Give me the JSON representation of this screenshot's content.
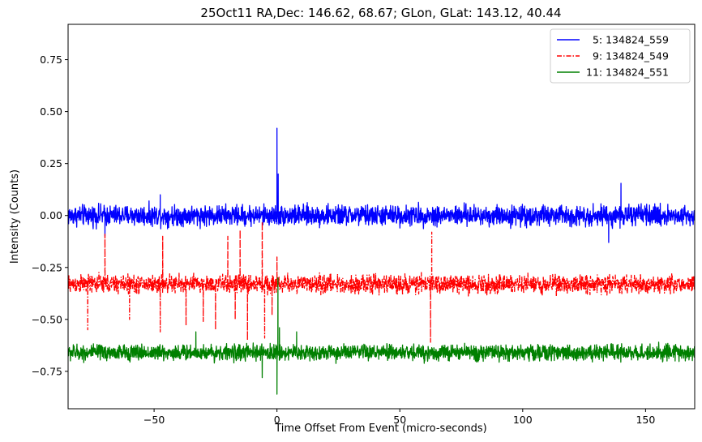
{
  "chart_data": {
    "type": "line",
    "title": "25Oct11 RA,Dec:  146.62,  68.67; GLon, GLat:  143.12,  40.44",
    "xlabel": "Time Offset From Event (micro-seconds)",
    "ylabel": "Intensity (Counts)",
    "xlim": [
      -85,
      170
    ],
    "ylim": [
      -0.93,
      0.92
    ],
    "x_ticks": [
      -50,
      0,
      50,
      100,
      150
    ],
    "x_tick_labels": [
      "−50",
      "0",
      "50",
      "100",
      "150"
    ],
    "y_ticks": [
      -0.75,
      -0.5,
      -0.25,
      0.0,
      0.25,
      0.5,
      0.75
    ],
    "y_tick_labels": [
      "−0.75",
      "−0.50",
      "−0.25",
      "0.00",
      "0.25",
      "0.50",
      "0.75"
    ],
    "legend_position": "top-right",
    "series": [
      {
        "name": "  5: 134824_559",
        "color": "#0000ff",
        "style": "solid",
        "baseline": 0.0,
        "noise_amplitude": 0.045,
        "spikes": [
          {
            "x": 0.0,
            "y": 0.42
          },
          {
            "x": 0.5,
            "y": 0.2
          },
          {
            "x": 140.0,
            "y": 0.155
          },
          {
            "x": -47.5,
            "y": 0.1
          },
          {
            "x": -70.0,
            "y": -0.1
          },
          {
            "x": 135.0,
            "y": -0.13
          }
        ]
      },
      {
        "name": "  9: 134824_549",
        "color": "#ff0000",
        "style": "dashdot",
        "baseline": -0.33,
        "noise_amplitude": 0.04,
        "spikes": [
          {
            "x": -70.0,
            "y": -0.09
          },
          {
            "x": -47.5,
            "y": -0.56
          },
          {
            "x": -46.5,
            "y": -0.1
          },
          {
            "x": -5.0,
            "y": -0.59
          },
          {
            "x": -6.0,
            "y": -0.03
          },
          {
            "x": 62.5,
            "y": -0.61
          },
          {
            "x": 63.0,
            "y": -0.08
          },
          {
            "x": -77.0,
            "y": -0.55
          },
          {
            "x": -60.0,
            "y": -0.5
          },
          {
            "x": -37.0,
            "y": -0.53
          },
          {
            "x": -30.0,
            "y": -0.51
          },
          {
            "x": -25.0,
            "y": -0.55
          },
          {
            "x": -17.0,
            "y": -0.5
          },
          {
            "x": -12.0,
            "y": -0.6
          },
          {
            "x": -2.0,
            "y": -0.48
          },
          {
            "x": 0.0,
            "y": -0.2
          },
          {
            "x": -20.0,
            "y": -0.1
          },
          {
            "x": -15.0,
            "y": -0.07
          }
        ]
      },
      {
        "name": "11: 134824_551",
        "color": "#008000",
        "style": "solid",
        "baseline": -0.66,
        "noise_amplitude": 0.035,
        "spikes": [
          {
            "x": 0.0,
            "y": -0.86
          },
          {
            "x": 0.4,
            "y": -0.3
          },
          {
            "x": -6.0,
            "y": -0.78
          },
          {
            "x": 1.0,
            "y": -0.54
          },
          {
            "x": -33.0,
            "y": -0.56
          },
          {
            "x": 8.0,
            "y": -0.56
          }
        ]
      }
    ]
  }
}
